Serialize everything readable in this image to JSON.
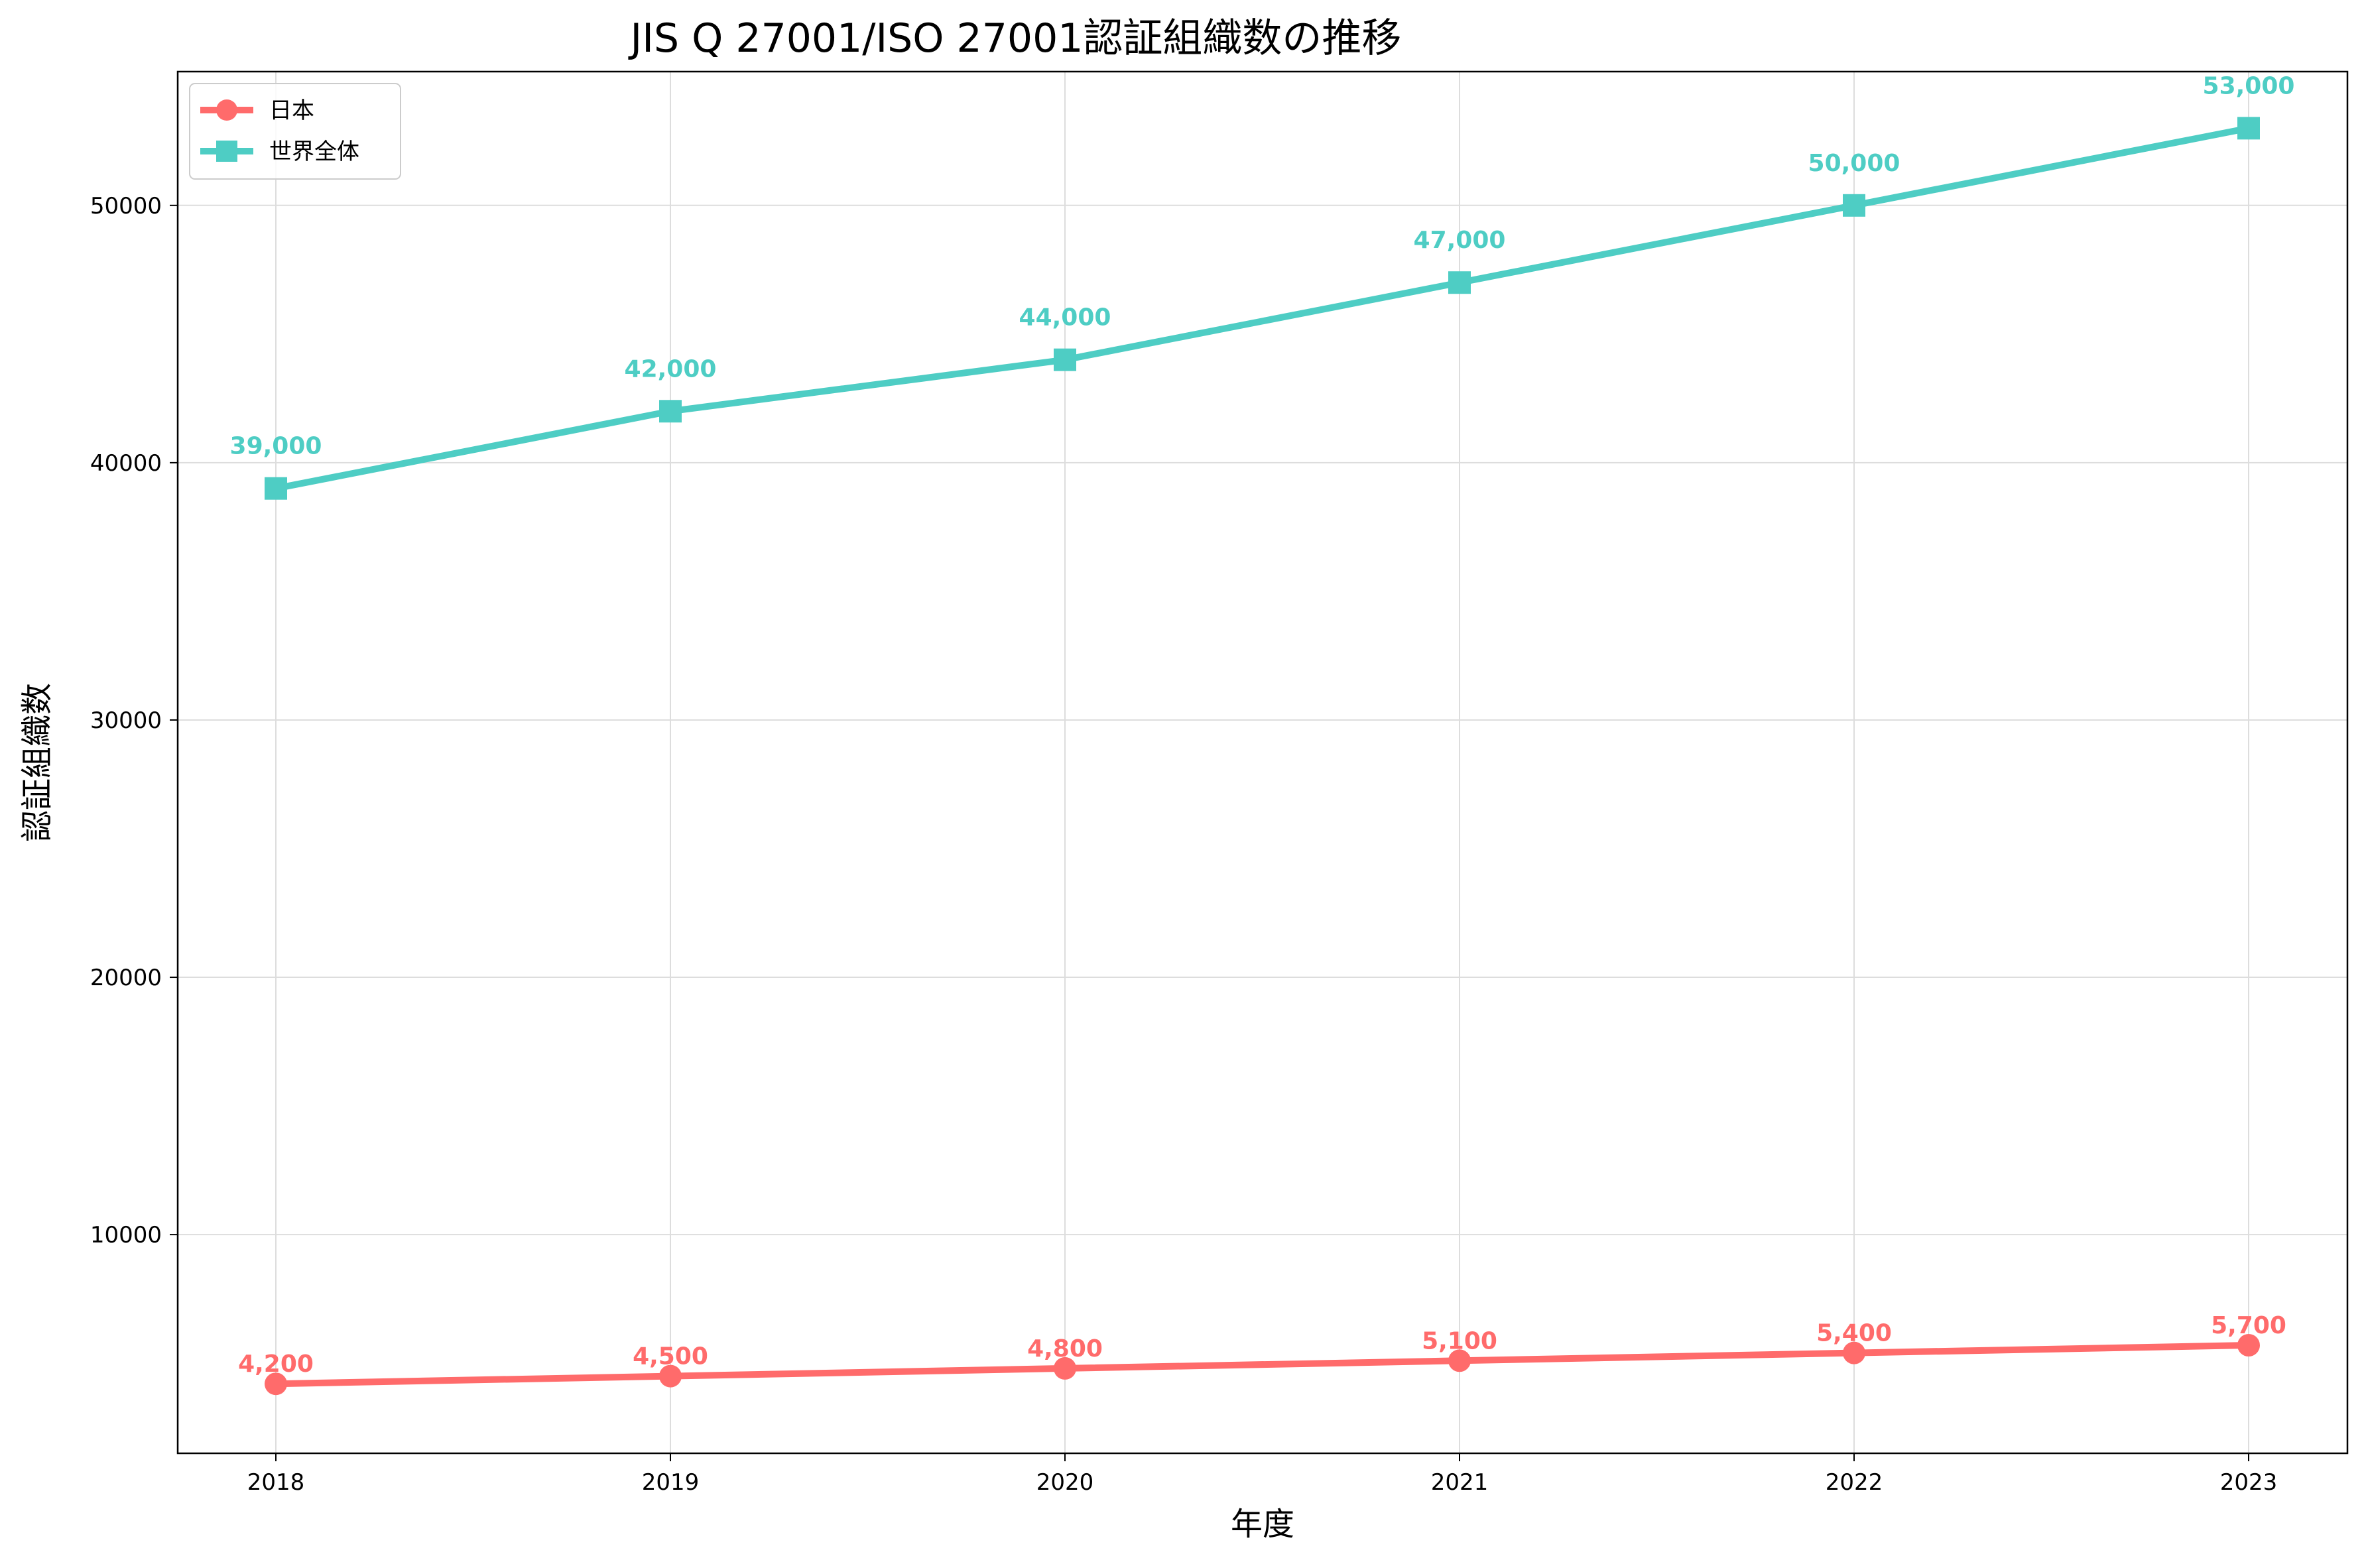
{
  "chart_data": {
    "type": "line",
    "title": "JIS Q 27001/ISO 27001認証組織数の推移",
    "xlabel": "年度",
    "ylabel": "認証組織数",
    "categories": [
      "2018",
      "2019",
      "2020",
      "2021",
      "2022",
      "2023"
    ],
    "ylim": [
      1500,
      55200
    ],
    "yticks": [
      10000,
      20000,
      30000,
      40000,
      50000
    ],
    "grid": true,
    "legend_position": "top-left",
    "series": [
      {
        "name": "日本",
        "values": [
          4200,
          4500,
          4800,
          5100,
          5400,
          5700
        ],
        "labels": [
          "4,200",
          "4,500",
          "4,800",
          "5,100",
          "5,400",
          "5,700"
        ],
        "color": "#ff6b6b",
        "marker": "circle"
      },
      {
        "name": "世界全体",
        "values": [
          39000,
          42000,
          44000,
          47000,
          50000,
          53000
        ],
        "labels": [
          "39,000",
          "42,000",
          "44,000",
          "47,000",
          "50,000",
          "53,000"
        ],
        "color": "#4ecdc4",
        "marker": "square"
      }
    ]
  }
}
